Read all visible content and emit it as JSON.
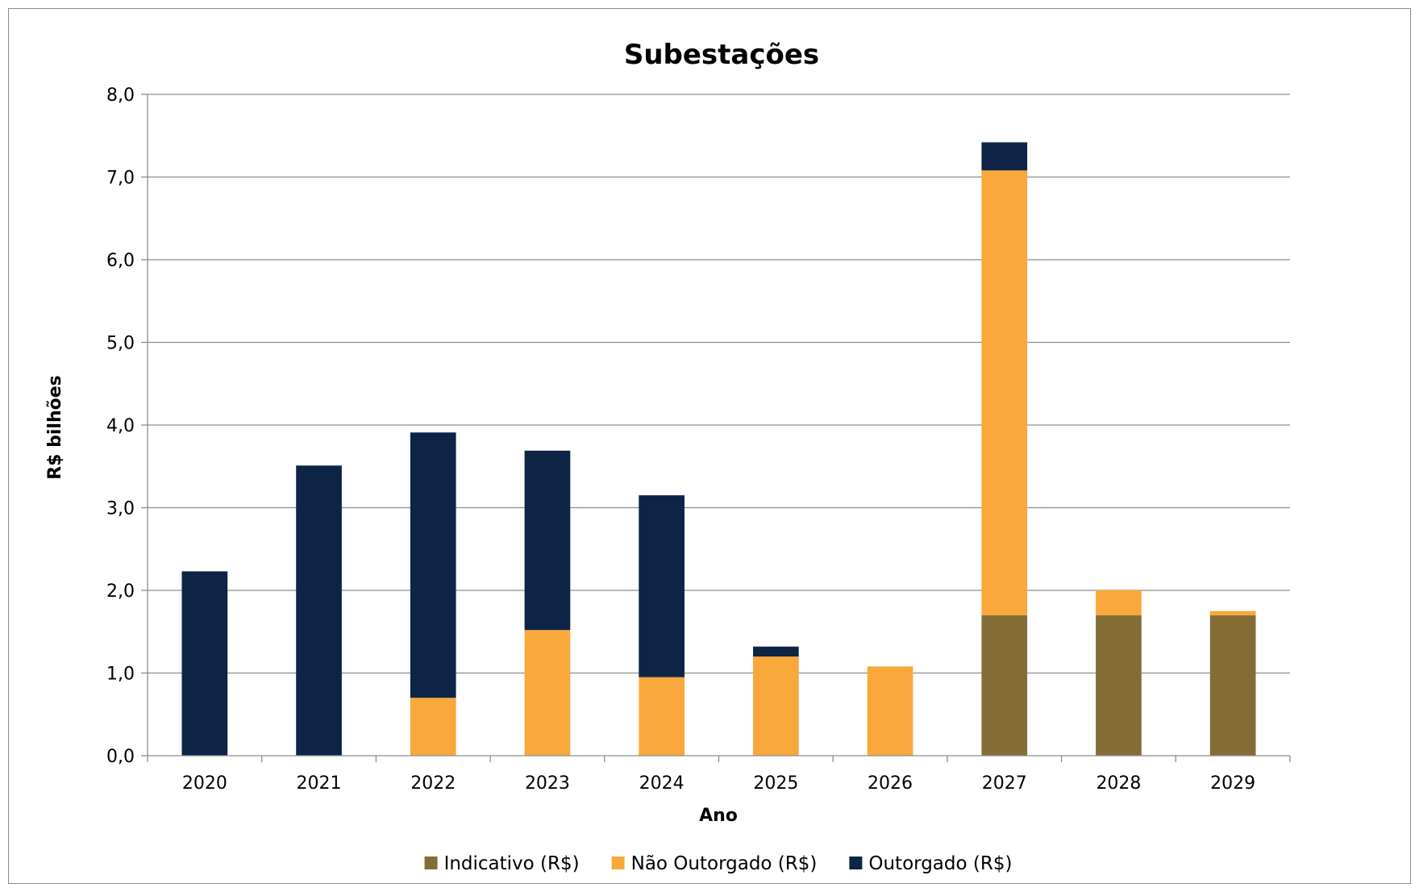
{
  "chart_data": {
    "type": "bar",
    "stacked": true,
    "title": "Subestações",
    "xlabel": "Ano",
    "ylabel": "R$ bilhões",
    "categories": [
      "2020",
      "2021",
      "2022",
      "2023",
      "2024",
      "2025",
      "2026",
      "2027",
      "2028",
      "2029"
    ],
    "ylim": [
      0,
      8
    ],
    "yticks": [
      "0,0",
      "1,0",
      "2,0",
      "3,0",
      "4,0",
      "5,0",
      "6,0",
      "7,0",
      "8,0"
    ],
    "grid": true,
    "legend_position": "bottom",
    "series": [
      {
        "name": "Indicativo (R$)",
        "color": "#846d35",
        "values": [
          0,
          0,
          0,
          0,
          0,
          0,
          0,
          1.7,
          1.7,
          1.7
        ]
      },
      {
        "name": "Não Outorgado (R$)",
        "color": "#f9a83c",
        "values": [
          0,
          0,
          0.7,
          1.52,
          0.95,
          1.2,
          1.08,
          5.38,
          0.3,
          0.05
        ]
      },
      {
        "name": "Outorgado (R$)",
        "color": "#0e2446",
        "values": [
          2.23,
          3.51,
          3.21,
          2.17,
          2.2,
          0.12,
          0,
          0.34,
          0,
          0
        ]
      }
    ]
  }
}
